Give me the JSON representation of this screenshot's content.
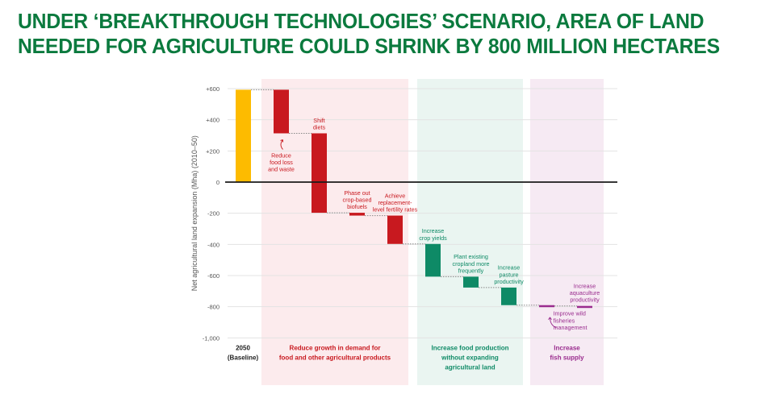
{
  "title_lines": [
    "UNDER ‘BREAKTHROUGH TECHNOLOGIES’ SCENARIO, AREA OF LAND",
    "NEEDED FOR AGRICULTURE COULD SHRINK BY 800 MILLION HECTARES"
  ],
  "colors": {
    "title": "#0b7a3e",
    "baseline_bar": "#fdbb00",
    "demand": "#c8191f",
    "demand_bg": "#fcebed",
    "production": "#0e8a66",
    "production_bg": "#eaf5f1",
    "fish": "#9a2c8e",
    "fish_bg": "#f6eaf3",
    "grid": "#e3e3e3",
    "zero_line": "#1a1a1a",
    "tick_text": "#555555"
  },
  "chart_data": {
    "type": "waterfall",
    "title": "Under ‘Breakthrough Technologies’ scenario, area of land needed for agriculture could shrink by 800 million hectares",
    "ylabel": "Net agricultural land expansion (Mha) (2010–50)",
    "ylim": [
      -1000,
      600
    ],
    "yticks": [
      600,
      400,
      200,
      0,
      -200,
      -400,
      -600,
      -800,
      -1000
    ],
    "ytick_labels": [
      "+600",
      "+400",
      "+200",
      "0",
      "-200",
      "-400",
      "-600",
      "-800",
      "-1,000"
    ],
    "grid": true,
    "baseline": {
      "label_lines": [
        "2050",
        "(Baseline)"
      ],
      "value": 593
    },
    "groups": [
      {
        "name": "demand",
        "label_lines": [
          "Reduce growth in demand for",
          "food and other agricultural products"
        ],
        "steps": [
          {
            "label_lines": [
              "Reduce",
              "food loss",
              "and waste"
            ],
            "change": -280
          },
          {
            "label_lines": [
              "Shift",
              "diets"
            ],
            "change": -510
          },
          {
            "label_lines": [
              "Phase out",
              "crop-based",
              "biofuels"
            ],
            "change": -18
          },
          {
            "label_lines": [
              "Achieve",
              "replacement-",
              "level fertility rates"
            ],
            "change": -182
          }
        ]
      },
      {
        "name": "production",
        "label_lines": [
          "Increase food production",
          "without expanding",
          "agricultural land"
        ],
        "steps": [
          {
            "label_lines": [
              "Increase",
              "crop yields"
            ],
            "change": -210
          },
          {
            "label_lines": [
              "Plant existing",
              "cropland more",
              "frequently"
            ],
            "change": -70
          },
          {
            "label_lines": [
              "Increase",
              "pasture",
              "productivity"
            ],
            "change": -113
          }
        ]
      },
      {
        "name": "fish",
        "label_lines": [
          "Increase",
          "fish supply"
        ],
        "steps": [
          {
            "label_lines": [
              "Improve wild",
              "fisheries",
              "management"
            ],
            "change": -5
          },
          {
            "label_lines": [
              "Increase",
              "aquaculture",
              "productivity"
            ],
            "change": -10
          }
        ]
      }
    ]
  }
}
